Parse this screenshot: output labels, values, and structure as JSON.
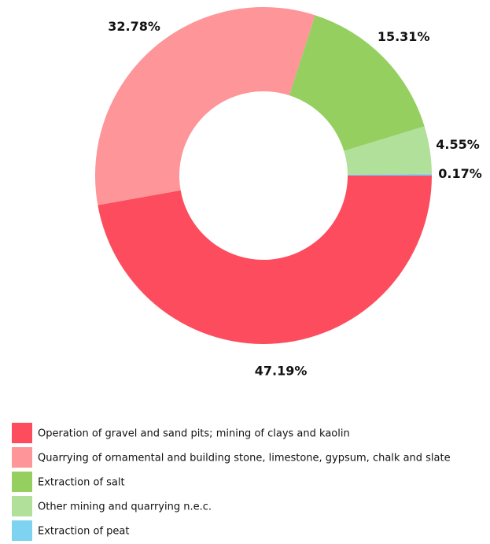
{
  "chart_data": {
    "type": "donut",
    "categories": [
      "Operation of gravel and sand pits; mining of clays and kaolin",
      "Quarrying of ornamental and building stone, limestone, gypsum, chalk and slate",
      "Extraction of salt",
      "Other mining and quarrying n.e.c.",
      "Extraction of peat"
    ],
    "values": [
      47.19,
      32.78,
      15.31,
      4.55,
      0.17
    ],
    "value_labels": [
      "47.19%",
      "32.78%",
      "15.31%",
      "4.55%",
      "0.17%"
    ],
    "colors": [
      "#fc4c5e",
      "#fd9599",
      "#94cf5f",
      "#b1e09b",
      "#7ed3f1"
    ]
  }
}
